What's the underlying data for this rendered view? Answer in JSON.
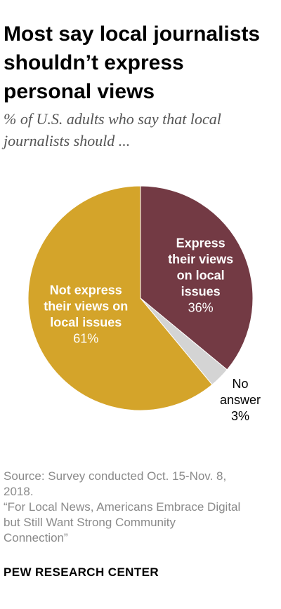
{
  "header": {
    "title_lines": [
      "Most say local journalists",
      "shouldn’t express",
      "personal views"
    ],
    "subtitle_lines": [
      "% of U.S. adults who say that local",
      "journalists should ..."
    ]
  },
  "chart_data": {
    "type": "pie",
    "start_angle_deg": 0,
    "direction": "clockwise",
    "slices": [
      {
        "label_lines": [
          "Express",
          "their views",
          "on local",
          "issues"
        ],
        "value_label": "36%",
        "value": 36,
        "color": "#733a44"
      },
      {
        "label_lines": [
          "No",
          "answer"
        ],
        "value_label": "3%",
        "value": 3,
        "color": "#d4d4d4"
      },
      {
        "label_lines": [
          "Not express",
          "their views on",
          "local issues"
        ],
        "value_label": "61%",
        "value": 61,
        "color": "#d4a42a"
      }
    ]
  },
  "footer": {
    "source_lines": [
      "Source: Survey conducted Oct. 15-Nov. 8,",
      "2018."
    ],
    "report_lines": [
      "“For Local News, Americans Embrace Digital",
      "but Still Want Strong Community",
      "Connection”"
    ],
    "brand": "PEW RESEARCH CENTER"
  }
}
